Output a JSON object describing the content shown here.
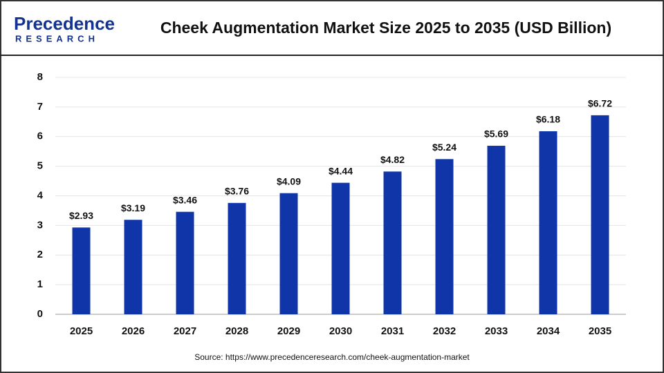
{
  "brand": {
    "name": "Precedence",
    "tagline": "RESEARCH"
  },
  "chart_data": {
    "type": "bar",
    "title": "Cheek Augmentation Market Size 2025 to 2035 (USD Billion)",
    "categories": [
      "2025",
      "2026",
      "2027",
      "2028",
      "2029",
      "2030",
      "2031",
      "2032",
      "2033",
      "2034",
      "2035"
    ],
    "values": [
      2.93,
      3.19,
      3.46,
      3.76,
      4.09,
      4.44,
      4.82,
      5.24,
      5.69,
      6.18,
      6.72
    ],
    "value_labels": [
      "$2.93",
      "$3.19",
      "$3.46",
      "$3.76",
      "$4.09",
      "$4.44",
      "$4.82",
      "$5.24",
      "$5.69",
      "$6.18",
      "$6.72"
    ],
    "color": "#0f35a8",
    "ylim": [
      0,
      8
    ],
    "yticks": [
      0,
      1,
      2,
      3,
      4,
      5,
      6,
      7,
      8
    ],
    "grid": true,
    "source": "Source: https://www.precedenceresearch.com/cheek-augmentation-market"
  }
}
